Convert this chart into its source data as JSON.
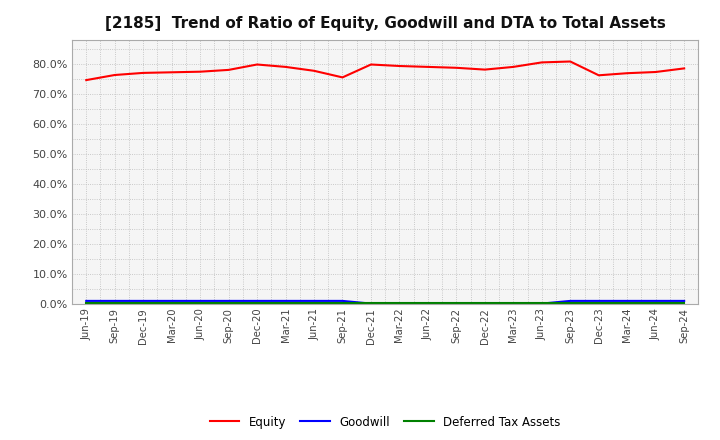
{
  "title": "[2185]  Trend of Ratio of Equity, Goodwill and DTA to Total Assets",
  "x_labels": [
    "Jun-19",
    "Sep-19",
    "Dec-19",
    "Mar-20",
    "Jun-20",
    "Sep-20",
    "Dec-20",
    "Mar-21",
    "Jun-21",
    "Sep-21",
    "Dec-21",
    "Mar-22",
    "Jun-22",
    "Sep-22",
    "Dec-22",
    "Mar-23",
    "Jun-23",
    "Sep-23",
    "Dec-23",
    "Mar-24",
    "Jun-24",
    "Sep-24"
  ],
  "equity": [
    0.745,
    0.762,
    0.769,
    0.771,
    0.773,
    0.779,
    0.797,
    0.789,
    0.776,
    0.754,
    0.797,
    0.792,
    0.789,
    0.786,
    0.78,
    0.789,
    0.804,
    0.807,
    0.761,
    0.768,
    0.772,
    0.784
  ],
  "goodwill": [
    0.009,
    0.009,
    0.009,
    0.009,
    0.009,
    0.009,
    0.009,
    0.009,
    0.009,
    0.009,
    0.0,
    0.0,
    0.0,
    0.0,
    0.0,
    0.0,
    0.0,
    0.009,
    0.009,
    0.009,
    0.009,
    0.009
  ],
  "dta": [
    0.001,
    0.001,
    0.001,
    0.001,
    0.001,
    0.001,
    0.001,
    0.001,
    0.001,
    0.001,
    0.001,
    0.001,
    0.001,
    0.001,
    0.001,
    0.001,
    0.001,
    0.001,
    0.001,
    0.001,
    0.001,
    0.001
  ],
  "equity_color": "#ff0000",
  "goodwill_color": "#0000ff",
  "dta_color": "#008000",
  "ylim_min": 0.0,
  "ylim_max": 0.88,
  "ytick_values": [
    0.0,
    0.1,
    0.2,
    0.3,
    0.4,
    0.5,
    0.6,
    0.7,
    0.8
  ],
  "bg_color": "#ffffff",
  "plot_bg_color": "#f5f5f5",
  "grid_color": "#bbbbbb",
  "spine_color": "#aaaaaa",
  "title_fontsize": 11,
  "tick_label_color": "#444444",
  "legend_labels": [
    "Equity",
    "Goodwill",
    "Deferred Tax Assets"
  ]
}
